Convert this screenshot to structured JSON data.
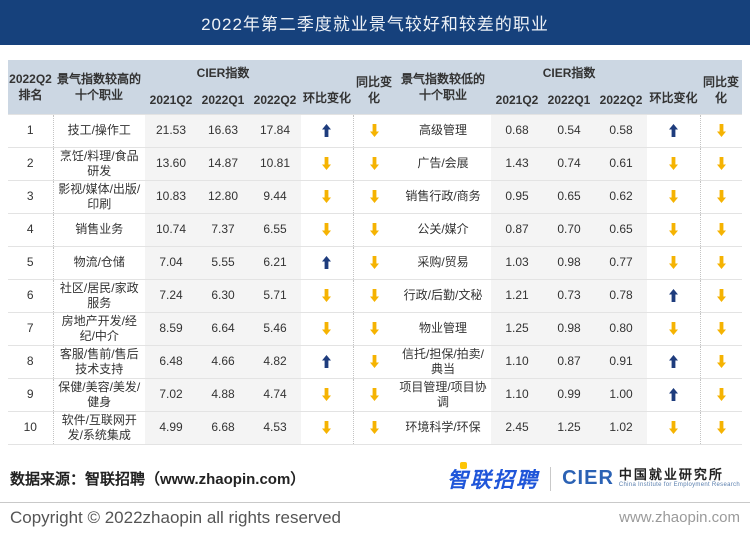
{
  "title": "2022年第二季度就业景气较好和较差的职业",
  "colors": {
    "title_bar": "#16417c",
    "header_bg": "#ccd7e3",
    "up_arrow": "#1e3c7d",
    "down_arrow": "#f5b302",
    "zp_blue": "#1f56d9",
    "zp_yellow": "#fdc506",
    "cier_blue": "#2b62b4"
  },
  "header": {
    "rank": "2022Q2\n排名",
    "high_occupations": "景气指数较高的\n十个职业",
    "low_occupations": "景气指数较低的\n十个职业",
    "cier_index": "CIER指数",
    "quarters": [
      "2021Q2",
      "2022Q1",
      "2022Q2"
    ],
    "mom_change": "环比变化",
    "yoy_change": "同比变化"
  },
  "chart_data": {
    "type": "table",
    "title": "2022年第二季度就业景气较好和较差的职业",
    "columns": [
      "2022Q2排名",
      "景气指数较高的十个职业",
      "2021Q2",
      "2022Q1",
      "2022Q2",
      "环比变化",
      "同比变化",
      "景气指数较低的十个职业",
      "2021Q2",
      "2022Q1",
      "2022Q2",
      "环比变化",
      "同比变化"
    ],
    "high_rows": [
      {
        "rank": "1",
        "name": "技工/操作工",
        "q2021q2": "21.53",
        "q2022q1": "16.63",
        "q2022q2": "17.84",
        "mom": "up",
        "yoy": "down"
      },
      {
        "rank": "2",
        "name": "烹饪/料理/食品研发",
        "q2021q2": "13.60",
        "q2022q1": "14.87",
        "q2022q2": "10.81",
        "mom": "down",
        "yoy": "down"
      },
      {
        "rank": "3",
        "name": "影视/媒体/出版/印刷",
        "q2021q2": "10.83",
        "q2022q1": "12.80",
        "q2022q2": "9.44",
        "mom": "down",
        "yoy": "down"
      },
      {
        "rank": "4",
        "name": "销售业务",
        "q2021q2": "10.74",
        "q2022q1": "7.37",
        "q2022q2": "6.55",
        "mom": "down",
        "yoy": "down"
      },
      {
        "rank": "5",
        "name": "物流/仓储",
        "q2021q2": "7.04",
        "q2022q1": "5.55",
        "q2022q2": "6.21",
        "mom": "up",
        "yoy": "down"
      },
      {
        "rank": "6",
        "name": "社区/居民/家政服务",
        "q2021q2": "7.24",
        "q2022q1": "6.30",
        "q2022q2": "5.71",
        "mom": "down",
        "yoy": "down"
      },
      {
        "rank": "7",
        "name": "房地产开发/经纪/中介",
        "q2021q2": "8.59",
        "q2022q1": "6.64",
        "q2022q2": "5.46",
        "mom": "down",
        "yoy": "down"
      },
      {
        "rank": "8",
        "name": "客服/售前/售后技术支持",
        "q2021q2": "6.48",
        "q2022q1": "4.66",
        "q2022q2": "4.82",
        "mom": "up",
        "yoy": "down"
      },
      {
        "rank": "9",
        "name": "保健/美容/美发/健身",
        "q2021q2": "7.02",
        "q2022q1": "4.88",
        "q2022q2": "4.74",
        "mom": "down",
        "yoy": "down"
      },
      {
        "rank": "10",
        "name": "软件/互联网开发/系统集成",
        "q2021q2": "4.99",
        "q2022q1": "6.68",
        "q2022q2": "4.53",
        "mom": "down",
        "yoy": "down"
      }
    ],
    "low_rows": [
      {
        "name": "高级管理",
        "q2021q2": "0.68",
        "q2022q1": "0.54",
        "q2022q2": "0.58",
        "mom": "up",
        "yoy": "down"
      },
      {
        "name": "广告/会展",
        "q2021q2": "1.43",
        "q2022q1": "0.74",
        "q2022q2": "0.61",
        "mom": "down",
        "yoy": "down"
      },
      {
        "name": "销售行政/商务",
        "q2021q2": "0.95",
        "q2022q1": "0.65",
        "q2022q2": "0.62",
        "mom": "down",
        "yoy": "down"
      },
      {
        "name": "公关/媒介",
        "q2021q2": "0.87",
        "q2022q1": "0.70",
        "q2022q2": "0.65",
        "mom": "down",
        "yoy": "down"
      },
      {
        "name": "采购/贸易",
        "q2021q2": "1.03",
        "q2022q1": "0.98",
        "q2022q2": "0.77",
        "mom": "down",
        "yoy": "down"
      },
      {
        "name": "行政/后勤/文秘",
        "q2021q2": "1.21",
        "q2022q1": "0.73",
        "q2022q2": "0.78",
        "mom": "up",
        "yoy": "down"
      },
      {
        "name": "物业管理",
        "q2021q2": "1.25",
        "q2022q1": "0.98",
        "q2022q2": "0.80",
        "mom": "down",
        "yoy": "down"
      },
      {
        "name": "信托/担保/拍卖/典当",
        "q2021q2": "1.10",
        "q2022q1": "0.87",
        "q2022q2": "0.91",
        "mom": "up",
        "yoy": "down"
      },
      {
        "name": "项目管理/项目协调",
        "q2021q2": "1.10",
        "q2022q1": "0.99",
        "q2022q2": "1.00",
        "mom": "up",
        "yoy": "down"
      },
      {
        "name": "环境科学/环保",
        "q2021q2": "2.45",
        "q2022q1": "1.25",
        "q2022q2": "1.02",
        "mom": "down",
        "yoy": "down"
      }
    ]
  },
  "footer": {
    "source": "数据来源：智联招聘（www.zhaopin.com）",
    "zhaopin_logo": "智联招聘",
    "cier_logo": "CIER",
    "cier_cn": "中国就业研究所",
    "cier_en": "China Institute for Employment Research",
    "copyright": "Copyright ©  2022zhaopin all rights reserved",
    "url": "www.zhaopin.com"
  }
}
